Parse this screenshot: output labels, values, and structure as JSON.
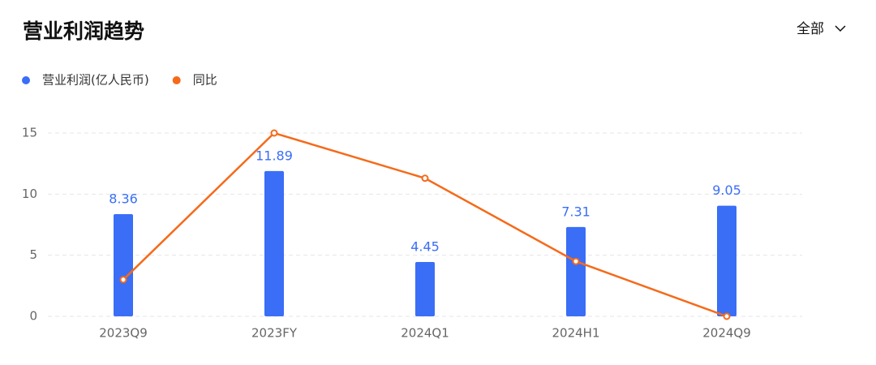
{
  "chart_data": {
    "type": "bar",
    "title": "营业利润趋势",
    "categories": [
      "2023Q9",
      "2023FY",
      "2024Q1",
      "2024H1",
      "2024Q9"
    ],
    "series": [
      {
        "name": "营业利润(亿人民币)",
        "type": "bar",
        "color": "#3a6ef6",
        "values": [
          8.36,
          11.89,
          4.45,
          7.31,
          9.05
        ]
      },
      {
        "name": "同比",
        "type": "line",
        "color": "#f56a1a",
        "values": [
          3.0,
          15.0,
          11.3,
          4.5,
          0.0
        ]
      }
    ],
    "ylim": [
      0,
      15
    ],
    "yticks": [
      0,
      5,
      10,
      15
    ],
    "grid": true
  },
  "controls": {
    "filter": "全部"
  }
}
